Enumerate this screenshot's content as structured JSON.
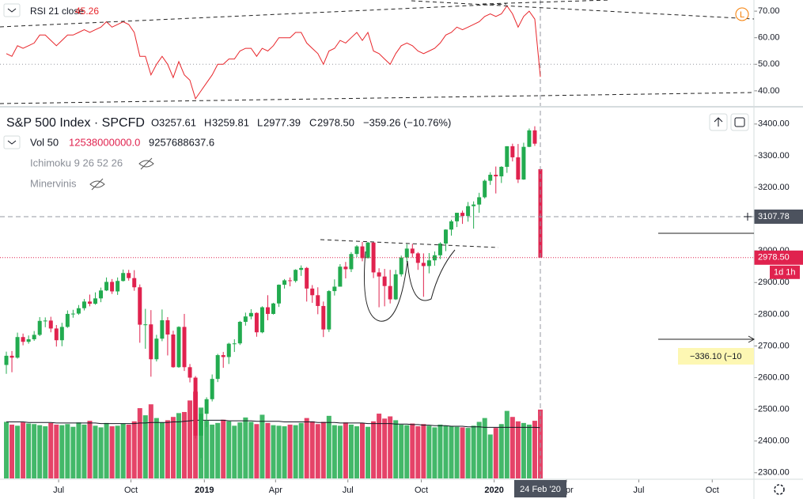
{
  "chart_data": [
    {
      "type": "candlestick",
      "title": "S&P 500 Index · SPCFD",
      "header": {
        "open_prefix": "O",
        "open": "3257.61",
        "high_prefix": "H",
        "high": "3259.81",
        "low_prefix": "L",
        "low": "2977.39",
        "close_prefix": "C",
        "close": "2978.50",
        "change": "−359.26 (−10.76%)"
      },
      "open": [
        2640,
        2669,
        2663,
        2728,
        2713,
        2721,
        2735,
        2779,
        2780,
        2755,
        2718,
        2760,
        2801,
        2802,
        2819,
        2840,
        2833,
        2850,
        2875,
        2902,
        2872,
        2905,
        2930,
        2914,
        2885,
        2767,
        2768,
        2658,
        2723,
        2781,
        2736,
        2633,
        2760,
        2633,
        2600,
        2417,
        2486,
        2532,
        2596,
        2671,
        2665,
        2707,
        2708,
        2776,
        2793,
        2804,
        2743,
        2822,
        2801,
        2834,
        2893,
        2907,
        2905,
        2940,
        2946,
        2881,
        2860,
        2826,
        2752,
        2873,
        2887,
        2950,
        2942,
        2990,
        3014,
        2977,
        3026,
        2932,
        2919,
        2889,
        2847,
        2926,
        2979,
        3007,
        2992,
        2962,
        2952,
        2970,
        2986,
        3023,
        3067,
        3093,
        3120,
        3110,
        3141,
        3146,
        3169,
        3221,
        3240,
        3235,
        3265,
        3330,
        3295,
        3225,
        3328,
        3380,
        3257.61
      ],
      "high": [
        2682,
        2684,
        2742,
        2739,
        2733,
        2747,
        2791,
        2790,
        2792,
        2766,
        2773,
        2812,
        2814,
        2829,
        2848,
        2862,
        2869,
        2884,
        2916,
        2911,
        2916,
        2941,
        2940,
        2939,
        2894,
        2817,
        2813,
        2735,
        2815,
        2791,
        2748,
        2762,
        2801,
        2643,
        2605,
        2500,
        2538,
        2610,
        2675,
        2681,
        2710,
        2721,
        2779,
        2805,
        2816,
        2806,
        2825,
        2860,
        2836,
        2894,
        2911,
        2916,
        2942,
        2954,
        2949,
        2892,
        2885,
        2840,
        2876,
        2910,
        2958,
        2965,
        2996,
        3018,
        3028,
        3028,
        3027,
        2945,
        2943,
        2940,
        2940,
        2985,
        3021,
        3022,
        2996,
        2992,
        2993,
        2998,
        3027,
        3068,
        3098,
        3120,
        3127,
        3154,
        3156,
        3183,
        3225,
        3248,
        3266,
        3267,
        3330,
        3338,
        3337,
        3341,
        3386,
        3393,
        3259.81
      ],
      "low": [
        2612,
        2617,
        2660,
        2702,
        2707,
        2716,
        2731,
        2759,
        2743,
        2698,
        2699,
        2757,
        2789,
        2798,
        2812,
        2825,
        2830,
        2838,
        2873,
        2864,
        2861,
        2903,
        2906,
        2874,
        2710,
        2691,
        2603,
        2651,
        2715,
        2670,
        2631,
        2631,
        2621,
        2585,
        2408,
        2346,
        2444,
        2525,
        2586,
        2631,
        2643,
        2681,
        2703,
        2764,
        2784,
        2729,
        2740,
        2781,
        2799,
        2823,
        2881,
        2888,
        2900,
        2921,
        2840,
        2836,
        2800,
        2728,
        2744,
        2859,
        2887,
        2913,
        2933,
        2980,
        2967,
        2976,
        2914,
        2822,
        2825,
        2834,
        2845,
        2919,
        2964,
        2979,
        2940,
        2855,
        2929,
        2953,
        2974,
        2999,
        3048,
        3075,
        3085,
        3092,
        3070,
        3120,
        3165,
        3208,
        3181,
        3214,
        3246,
        3282,
        3214,
        3224,
        3327,
        3331,
        2977.39
      ],
      "close": [
        2669,
        2663,
        2728,
        2713,
        2721,
        2735,
        2779,
        2780,
        2755,
        2718,
        2760,
        2801,
        2802,
        2819,
        2840,
        2833,
        2850,
        2875,
        2902,
        2872,
        2905,
        2930,
        2914,
        2885,
        2767,
        2768,
        2658,
        2723,
        2781,
        2736,
        2633,
        2760,
        2633,
        2600,
        2417,
        2486,
        2532,
        2596,
        2671,
        2665,
        2707,
        2708,
        2776,
        2793,
        2804,
        2743,
        2822,
        2801,
        2834,
        2893,
        2907,
        2905,
        2940,
        2946,
        2881,
        2860,
        2826,
        2752,
        2873,
        2887,
        2950,
        2942,
        2990,
        3014,
        2977,
        3026,
        2932,
        2919,
        2889,
        2847,
        2926,
        2979,
        3007,
        2992,
        2962,
        2952,
        2970,
        2986,
        3023,
        3067,
        3093,
        3120,
        3110,
        3141,
        3146,
        3169,
        3221,
        3240,
        3235,
        3265,
        3330,
        3295,
        3225,
        3328,
        3380,
        3338,
        2978.5
      ],
      "up_color": "#22ab4f",
      "down_color": "#e0224e",
      "xlim": [
        -1.14,
        134.4
      ],
      "xticks": [
        {
          "value": 9.4,
          "label": "Jul"
        },
        {
          "value": 22.4,
          "label": "Oct"
        },
        {
          "value": 35.6,
          "label": "2019"
        },
        {
          "value": 48.4,
          "label": "Apr"
        },
        {
          "value": 61.4,
          "label": "Jul"
        },
        {
          "value": 74.6,
          "label": "Oct"
        },
        {
          "value": 87.7,
          "label": "2020"
        },
        {
          "value": 100.7,
          "label": "Apr"
        },
        {
          "value": 113.7,
          "label": "Jul"
        },
        {
          "value": 126.9,
          "label": "Oct"
        }
      ],
      "crosshair_x": {
        "value": 96,
        "label": "24 Feb '20"
      },
      "ylim": [
        2282,
        3442
      ],
      "yticks": [
        {
          "value": 2300,
          "label": "2300.00"
        },
        {
          "value": 2400,
          "label": "2400.00"
        },
        {
          "value": 2500,
          "label": "2500.00"
        },
        {
          "value": 2600,
          "label": "2600.00"
        },
        {
          "value": 2700,
          "label": "2700.00"
        },
        {
          "value": 2800,
          "label": "2800.00"
        },
        {
          "value": 2900,
          "label": "2900.00"
        },
        {
          "value": 3000,
          "label": "3000.00"
        },
        {
          "value": 3100,
          "label": "3100.00"
        },
        {
          "value": 3200,
          "label": "3200.00"
        },
        {
          "value": 3300,
          "label": "3300.00"
        },
        {
          "value": 3400,
          "label": "3400.00"
        }
      ],
      "crosshair_price": {
        "value": 3107.78,
        "label": "3107.78"
      },
      "last_price": {
        "value": 2978.5,
        "label": "2978.50"
      },
      "countdown": "1d 1h",
      "measure": "−336.10 (−10",
      "volume": {
        "name": "Vol 50",
        "value_label": "12538000000.0",
        "ma_label": "9257688637.6",
        "ylim": [
          0,
          18000000000.0
        ],
        "values": [
          10300000000.0,
          9800000000.0,
          9600000000.0,
          10200000000.0,
          10000000000.0,
          9900000000.0,
          9700000000.0,
          9500000000.0,
          10100000000.0,
          9800000000.0,
          9700000000.0,
          9900000000.0,
          9400000000.0,
          10200000000.0,
          9800000000.0,
          10500000000.0,
          9600000000.0,
          9300000000.0,
          10100000000.0,
          9500000000.0,
          9600000000.0,
          10000000000.0,
          9800000000.0,
          10400000000.0,
          12800000000.0,
          11500000000.0,
          13500000000.0,
          11000000000.0,
          10200000000.0,
          10600000000.0,
          11200000000.0,
          11900000000.0,
          12100000000.0,
          14200000000.0,
          15800000000.0,
          12900000000.0,
          10500000000.0,
          9800000000.0,
          10100000000.0,
          10700000000.0,
          10400000000.0,
          9600000000.0,
          10200000000.0,
          11100000000.0,
          10300000000.0,
          9900000000.0,
          11600000000.0,
          10100000000.0,
          9700000000.0,
          9600000000.0,
          9500000000.0,
          9800000000.0,
          9700000000.0,
          10100000000.0,
          11000000000.0,
          10400000000.0,
          9900000000.0,
          10300000000.0,
          11400000000.0,
          9700000000.0,
          9600000000.0,
          10200000000.0,
          9800000000.0,
          9500000000.0,
          10100000000.0,
          9400000000.0,
          10400000000.0,
          11800000000.0,
          10900000000.0,
          11300000000.0,
          10600000000.0,
          9800000000.0,
          9700000000.0,
          10000000000.0,
          9500000000.0,
          9900000000.0,
          9600000000.0,
          9300000000.0,
          9800000000.0,
          9600000000.0,
          9500000000.0,
          9400000000.0,
          9300000000.0,
          9200000000.0,
          9600000000.0,
          10300000000.0,
          11000000000.0,
          8000000000.0,
          9200000000.0,
          9900000000.0,
          12300000000.0,
          11200000000.0,
          10400000000.0,
          10100000000.0,
          9800000000.0,
          10500000000.0,
          12538000000
        ],
        "ma_values": [
          10300000000.0,
          10300000000.0,
          10300000000.0,
          10300000000.0,
          10200000000.0,
          10200000000.0,
          10200000000.0,
          10200000000.0,
          10200000000.0,
          10100000000.0,
          10100000000.0,
          10100000000.0,
          10100000000.0,
          10100000000.0,
          10100000000.0,
          10100000000.0,
          10100000000.0,
          10000000000.0,
          10000000000.0,
          10000000000.0,
          10000000000.0,
          10000000000.0,
          10000000000.0,
          10000000000.0,
          10100000000.0,
          10100000000.0,
          10200000000.0,
          10200000000.0,
          10200000000.0,
          10200000000.0,
          10300000000.0,
          10300000000.0,
          10400000000.0,
          10500000000.0,
          10600000000.0,
          10600000000.0,
          10600000000.0,
          10600000000.0,
          10600000000.0,
          10600000000.0,
          10500000000.0,
          10500000000.0,
          10500000000.0,
          10500000000.0,
          10500000000.0,
          10400000000.0,
          10400000000.0,
          10400000000.0,
          10400000000.0,
          10400000000.0,
          10300000000.0,
          10300000000.0,
          10300000000.0,
          10300000000.0,
          10300000000.0,
          10300000000.0,
          10200000000.0,
          10200000000.0,
          10200000000.0,
          10200000000.0,
          10100000000.0,
          10100000000.0,
          10100000000.0,
          10100000000.0,
          10100000000.0,
          10000000000.0,
          10000000000.0,
          10000000000.0,
          10000000000.0,
          10000000000.0,
          9900000000.0,
          9900000000.0,
          9900000000.0,
          9800000000.0,
          9800000000.0,
          9700000000.0,
          9700000000.0,
          9600000000.0,
          9600000000.0,
          9600000000.0,
          9500000000.0,
          9500000000.0,
          9500000000.0,
          9400000000.0,
          9400000000.0,
          9400000000.0,
          9300000000.0,
          9300000000.0,
          9300000000.0,
          9300000000.0,
          9300000000.0,
          9300000000.0,
          9300000000.0,
          9300000000.0,
          9300000000.0,
          9300000000.0,
          9257688637.6
        ]
      },
      "indicators": [
        "Ichimoku 9 26 52 26",
        "Minervinis"
      ]
    },
    {
      "type": "line",
      "name": "RSI 21 close",
      "color": "#e8262b",
      "values": [
        54,
        53,
        57,
        56,
        57,
        58,
        61,
        61,
        59,
        57,
        59,
        61,
        61,
        62,
        63,
        62,
        63,
        64,
        66,
        64,
        65,
        66,
        65,
        62,
        53,
        53,
        46,
        50,
        53,
        50,
        45,
        51,
        46,
        44,
        37,
        40,
        43,
        46,
        50,
        50,
        52,
        52,
        55,
        56,
        56,
        53,
        56,
        55,
        57,
        60,
        60,
        60,
        62,
        62,
        58,
        56,
        54,
        50,
        55,
        56,
        59,
        58,
        60,
        62,
        59,
        62,
        55,
        54,
        52,
        50,
        54,
        57,
        58,
        57,
        55,
        54,
        55,
        56,
        58,
        61,
        62,
        64,
        63,
        64,
        65,
        66,
        68,
        69,
        68,
        69,
        72,
        69,
        64,
        68,
        70,
        67,
        45.26
      ],
      "ylim": [
        34.6,
        74.2
      ],
      "yticks": [
        {
          "value": 40,
          "label": "40.00"
        },
        {
          "value": 50,
          "label": "50.00"
        },
        {
          "value": 60,
          "label": "60.00"
        },
        {
          "value": 70,
          "label": "70.00"
        }
      ],
      "grid_value": 50
    }
  ]
}
